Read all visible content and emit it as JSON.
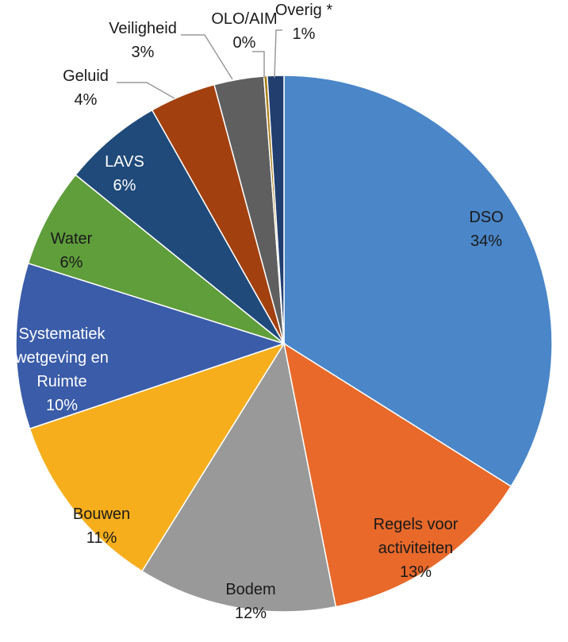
{
  "chart_data": {
    "type": "pie",
    "slices": [
      {
        "name": "DSO",
        "label_lines": [
          "DSO"
        ],
        "value": 34,
        "pct_label": "34%",
        "color": "#4A86C8",
        "label_color": "dark",
        "label_at": "inside"
      },
      {
        "name": "Regels voor activiteiten",
        "label_lines": [
          "Regels voor",
          "activiteiten"
        ],
        "value": 13,
        "pct_label": "13%",
        "color": "#E8692A",
        "label_color": "dark",
        "label_at": "inside"
      },
      {
        "name": "Bodem",
        "label_lines": [
          "Bodem"
        ],
        "value": 12,
        "pct_label": "12%",
        "color": "#999999",
        "label_color": "dark",
        "label_at": "inside"
      },
      {
        "name": "Bouwen",
        "label_lines": [
          "Bouwen"
        ],
        "value": 11,
        "pct_label": "11%",
        "color": "#F7AE1D",
        "label_color": "dark",
        "label_at": "inside"
      },
      {
        "name": "Systematiek wetgeving en Ruimte",
        "label_lines": [
          "Systematiek",
          "wetgeving en",
          "Ruimte"
        ],
        "value": 10,
        "pct_label": "10%",
        "color": "#3A5CA9",
        "label_color": "light",
        "label_at": "inside"
      },
      {
        "name": "Water",
        "label_lines": [
          "Water"
        ],
        "value": 6,
        "pct_label": "6%",
        "color": "#5F9E3B",
        "label_color": "dark",
        "label_at": "inside"
      },
      {
        "name": "LAVS",
        "label_lines": [
          "LAVS"
        ],
        "value": 6,
        "pct_label": "6%",
        "color": "#1F4A7A",
        "label_color": "light",
        "label_at": "inside"
      },
      {
        "name": "Geluid",
        "label_lines": [
          "Geluid"
        ],
        "value": 4,
        "pct_label": "4%",
        "color": "#A2410F",
        "label_color": "dark",
        "label_at": "outside"
      },
      {
        "name": "Veiligheid",
        "label_lines": [
          "Veiligheid"
        ],
        "value": 3,
        "pct_label": "3%",
        "color": "#5F5F5F",
        "label_color": "dark",
        "label_at": "outside"
      },
      {
        "name": "OLO/AIM",
        "label_lines": [
          "OLO/AIM"
        ],
        "value": 0.2,
        "pct_label": "0%",
        "color": "#A77C12",
        "label_color": "dark",
        "label_at": "outside"
      },
      {
        "name": "Overig *",
        "label_lines": [
          "Overig *"
        ],
        "value": 1,
        "pct_label": "1%",
        "color": "#213E6E",
        "label_color": "dark",
        "label_at": "outside"
      }
    ],
    "start_angle_deg": 0,
    "direction": "clockwise",
    "legend": "none"
  }
}
